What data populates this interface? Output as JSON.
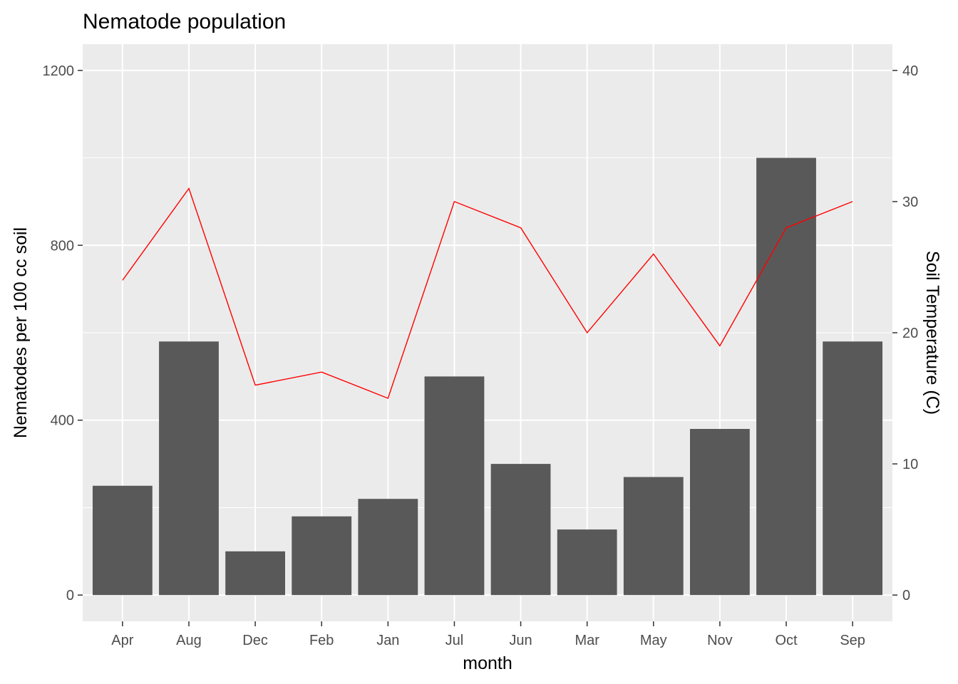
{
  "chart_data": {
    "type": "bar",
    "title": "Nematode population",
    "xlabel": "month",
    "ylabel": "Nematodes per 100 cc soil",
    "y2label": "Soil Temperature (C)",
    "categories": [
      "Apr",
      "Aug",
      "Dec",
      "Feb",
      "Jan",
      "Jul",
      "Jun",
      "Mar",
      "May",
      "Nov",
      "Oct",
      "Sep"
    ],
    "ylim": [
      -60,
      1260
    ],
    "yticks": [
      0,
      400,
      800,
      1200
    ],
    "y2lim": [
      -2,
      42
    ],
    "y2ticks": [
      0,
      10,
      20,
      30,
      40
    ],
    "grid": true,
    "series": [
      {
        "type": "bar",
        "axis": "left",
        "color": "#595959",
        "values": [
          250,
          580,
          100,
          180,
          220,
          500,
          300,
          150,
          270,
          380,
          1000,
          580
        ]
      },
      {
        "type": "line",
        "axis": "right",
        "color": "#ff0000",
        "values": [
          24,
          31,
          16,
          17,
          15,
          30,
          28,
          20,
          26,
          19,
          28,
          30
        ]
      }
    ]
  }
}
